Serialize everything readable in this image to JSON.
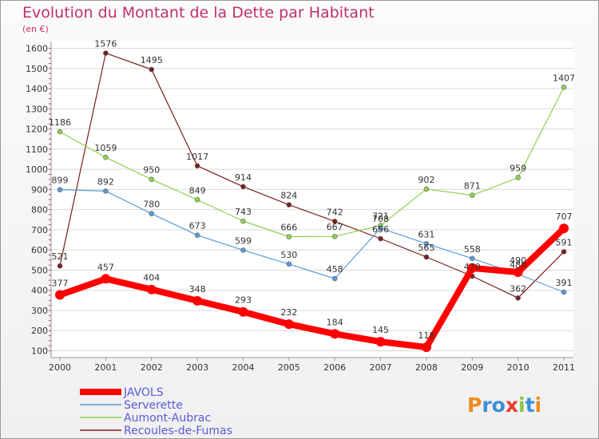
{
  "title": "Evolution du Montant de la Dette par Habitant",
  "subtitle": "(en €)",
  "logo": "Proxiti",
  "chart_data": {
    "type": "line",
    "title": "Evolution du Montant de la Dette par Habitant",
    "ylabel": "(en €)",
    "categories": [
      "2000",
      "2001",
      "2002",
      "2003",
      "2004",
      "2005",
      "2006",
      "2007",
      "2008",
      "2009",
      "2010",
      "2011"
    ],
    "ylim": [
      100,
      1600
    ],
    "yticks": [
      100,
      200,
      300,
      400,
      500,
      600,
      700,
      800,
      900,
      1000,
      1100,
      1200,
      1300,
      1400,
      1500,
      1600
    ],
    "grid": "horizontal",
    "legend": "bottom-left",
    "series": [
      {
        "name": "JAVOLS",
        "color": "#ff0000",
        "values": [
          377,
          457,
          404,
          348,
          293,
          232,
          184,
          145,
          118,
          510,
          490,
          707
        ],
        "labels": [
          "377",
          "457",
          "404",
          "348",
          "293",
          "232",
          "184",
          "145",
          "118",
          "",
          "490",
          "707"
        ]
      },
      {
        "name": "Serverette",
        "color": "#5b9bd5",
        "values": [
          899,
          892,
          780,
          673,
          599,
          530,
          458,
          708,
          631,
          558,
          480,
          391
        ],
        "labels": [
          "899",
          "892",
          "780",
          "673",
          "599",
          "530",
          "458",
          "708",
          "631",
          "558",
          "480",
          "391"
        ]
      },
      {
        "name": "Aumont-Aubrac",
        "color": "#8ed14f",
        "values": [
          1186,
          1059,
          950,
          849,
          743,
          666,
          667,
          721,
          902,
          871,
          959,
          1407
        ],
        "labels": [
          "1186",
          "1059",
          "950",
          "849",
          "743",
          "666",
          "667",
          "721",
          "902",
          "871",
          "959",
          "1407"
        ]
      },
      {
        "name": "Recoules-de-Fumas",
        "color": "#7a1f1f",
        "values": [
          521,
          1576,
          1495,
          1017,
          914,
          824,
          742,
          656,
          565,
          470,
          362,
          591
        ],
        "labels": [
          "521",
          "1576",
          "1495",
          "1017",
          "914",
          "824",
          "742",
          "656",
          "565",
          "470",
          "362",
          "591"
        ]
      }
    ]
  }
}
